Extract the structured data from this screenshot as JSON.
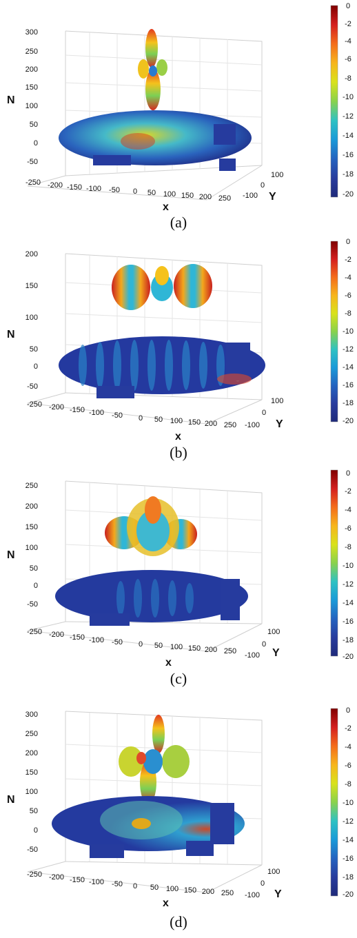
{
  "colorbar": {
    "ticks": [
      "0",
      "-2",
      "-4",
      "-6",
      "-8",
      "-10",
      "-12",
      "-14",
      "-16",
      "-18",
      "-20"
    ],
    "colors": [
      "#7f0000",
      "#d41f1f",
      "#f46d1b",
      "#f7b51c",
      "#d9e21b",
      "#89d24c",
      "#2fc2c2",
      "#1a9ad8",
      "#2463bf",
      "#283c9d",
      "#1f2a7a"
    ]
  },
  "axes": {
    "x_label": "x",
    "y_label": "Y",
    "z_label": "N",
    "x_ticks": [
      "-250",
      "-200",
      "-150",
      "-100",
      "-50",
      "0",
      "50",
      "100",
      "150",
      "200",
      "250"
    ],
    "y_ticks": [
      "100",
      "0",
      "-100"
    ]
  },
  "panels": [
    {
      "caption": "(a)",
      "z_ticks": [
        "300",
        "250",
        "200",
        "150",
        "100",
        "50",
        "0",
        "-50"
      ]
    },
    {
      "caption": "(b)",
      "z_ticks": [
        "200",
        "150",
        "100",
        "50",
        "0",
        "-50"
      ]
    },
    {
      "caption": "(c)",
      "z_ticks": [
        "250",
        "200",
        "150",
        "100",
        "50",
        "0",
        "-50"
      ]
    },
    {
      "caption": "(d)",
      "z_ticks": [
        "300",
        "250",
        "200",
        "150",
        "100",
        "50",
        "0",
        "-50"
      ]
    }
  ],
  "chart_data": [
    {
      "type": "surface",
      "title": "",
      "xlabel": "x",
      "ylabel": "Y",
      "zlabel": "N",
      "xlim": [
        -250,
        250
      ],
      "ylim": [
        -100,
        100
      ],
      "zlim": [
        -50,
        300
      ],
      "color_range": [
        -20,
        0
      ]
    },
    {
      "type": "surface",
      "title": "",
      "xlabel": "x",
      "ylabel": "Y",
      "zlabel": "N",
      "xlim": [
        -250,
        250
      ],
      "ylim": [
        -100,
        100
      ],
      "zlim": [
        -50,
        200
      ],
      "color_range": [
        -20,
        0
      ]
    },
    {
      "type": "surface",
      "title": "",
      "xlabel": "x",
      "ylabel": "Y",
      "zlabel": "N",
      "xlim": [
        -250,
        250
      ],
      "ylim": [
        -100,
        100
      ],
      "zlim": [
        -50,
        250
      ],
      "color_range": [
        -20,
        0
      ]
    },
    {
      "type": "surface",
      "title": "",
      "xlabel": "x",
      "ylabel": "Y",
      "zlabel": "N",
      "xlim": [
        -250,
        250
      ],
      "ylim": [
        -100,
        100
      ],
      "zlim": [
        -50,
        300
      ],
      "color_range": [
        -20,
        0
      ]
    }
  ]
}
